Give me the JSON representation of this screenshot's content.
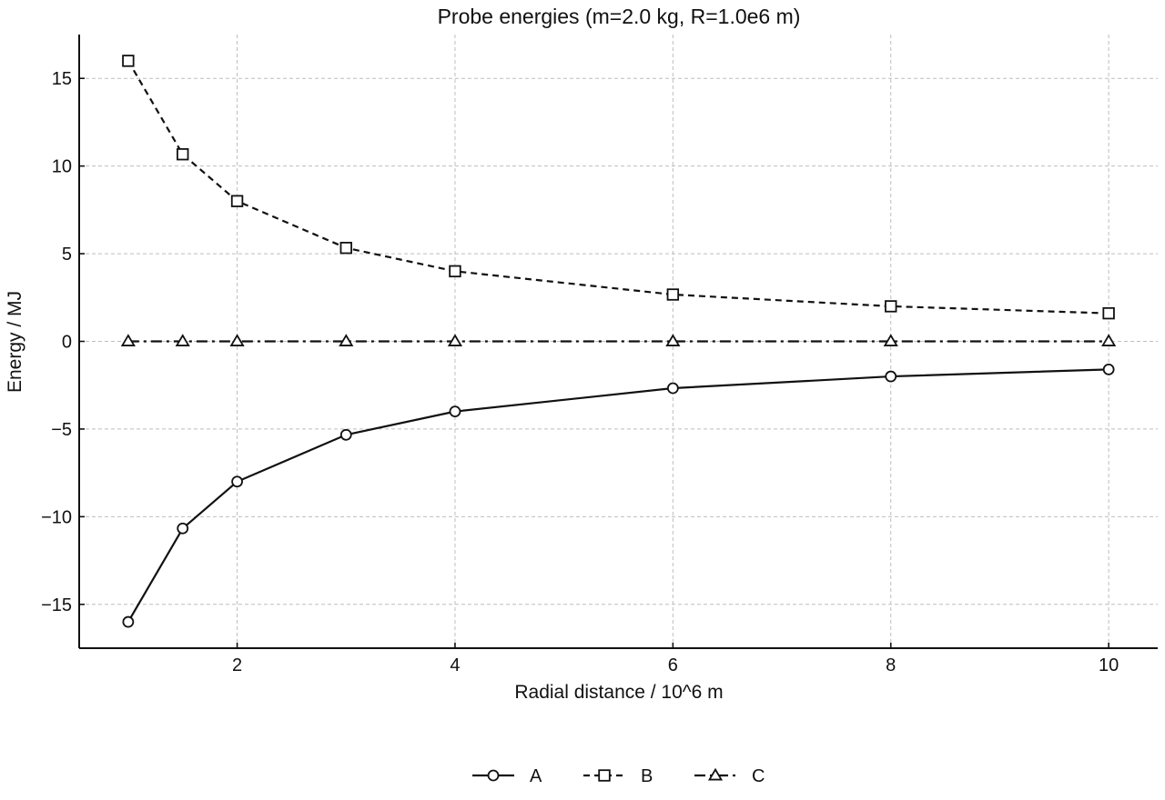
{
  "chart_data": {
    "type": "line",
    "title": "Probe energies (m=2.0 kg, R=1.0e6 m)",
    "xlabel": "Radial distance / 10^6 m",
    "ylabel": "Energy / MJ",
    "xlim": [
      0.55,
      10.45
    ],
    "ylim": [
      -17.5,
      17.5
    ],
    "xticks": [
      2,
      4,
      6,
      8,
      10
    ],
    "xtick_labels": [
      "2",
      "4",
      "6",
      "8",
      "10"
    ],
    "yticks": [
      15,
      10,
      5,
      0,
      -5,
      -10,
      -15
    ],
    "ytick_labels": [
      "15",
      "10",
      "5",
      "0",
      "−5",
      "−10",
      "−15"
    ],
    "grid": true,
    "legend_position": "bottom-center",
    "x": [
      1,
      1.5,
      2,
      3,
      4,
      6,
      8,
      10
    ],
    "series": [
      {
        "name": "A",
        "values": [
          -16,
          -10.67,
          -8,
          -5.33,
          -4,
          -2.67,
          -2,
          -1.6
        ],
        "marker": "circle",
        "linestyle": "solid",
        "color": "#111111"
      },
      {
        "name": "B",
        "values": [
          16,
          10.67,
          8,
          5.33,
          4,
          2.67,
          2,
          1.6
        ],
        "marker": "square",
        "linestyle": "dashed",
        "color": "#111111"
      },
      {
        "name": "C",
        "values": [
          0,
          0,
          0,
          0,
          0,
          0,
          0,
          0
        ],
        "marker": "triangle",
        "linestyle": "dashdot",
        "color": "#111111"
      }
    ]
  }
}
